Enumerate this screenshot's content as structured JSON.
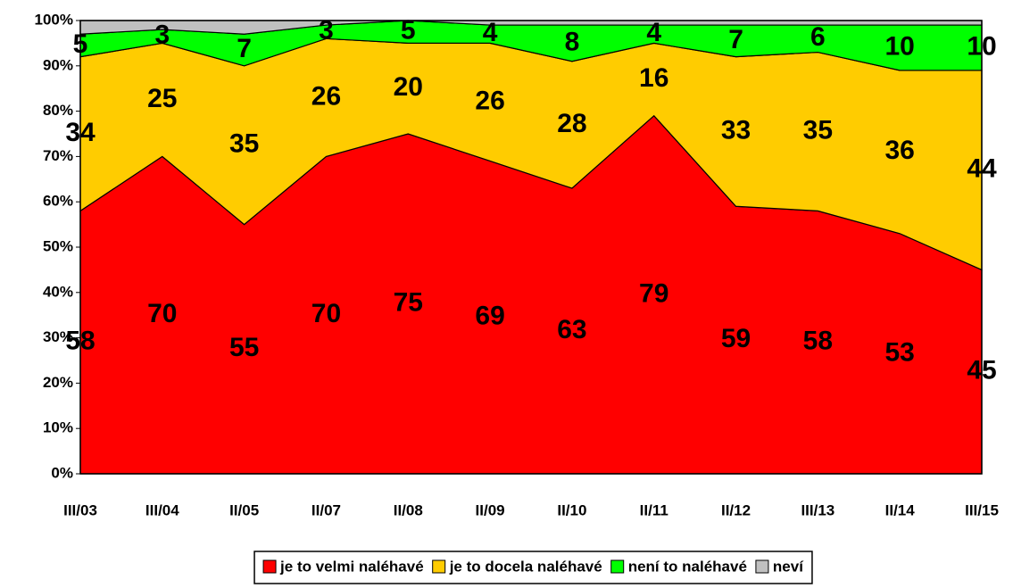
{
  "chart_data": {
    "type": "stacked_area",
    "categories": [
      "III/03",
      "III/04",
      "II/05",
      "II/07",
      "II/08",
      "II/09",
      "II/10",
      "II/11",
      "II/12",
      "III/13",
      "II/14",
      "III/15"
    ],
    "series": [
      {
        "name": "je to velmi naléhavé",
        "color": "#ff0000",
        "values": [
          58,
          70,
          55,
          70,
          75,
          69,
          63,
          79,
          59,
          58,
          53,
          45
        ],
        "show_labels": true
      },
      {
        "name": "je to docela naléhavé",
        "color": "#ffcc00",
        "values": [
          34,
          25,
          35,
          26,
          20,
          26,
          28,
          16,
          33,
          35,
          36,
          44
        ],
        "show_labels": true
      },
      {
        "name": "není to naléhavé",
        "color": "#00ff00",
        "values": [
          5,
          3,
          7,
          3,
          5,
          4,
          8,
          4,
          7,
          6,
          10,
          10
        ],
        "show_labels": true
      },
      {
        "name": "neví",
        "color": "#c0c0c0",
        "values": [
          3,
          2,
          3,
          1,
          0,
          1,
          1,
          1,
          1,
          1,
          1,
          1
        ],
        "show_labels": false
      }
    ],
    "ylim": [
      0,
      100
    ],
    "yticks": [
      {
        "value": 0,
        "label": "0%"
      },
      {
        "value": 10,
        "label": "10%"
      },
      {
        "value": 20,
        "label": "20%"
      },
      {
        "value": 30,
        "label": "30%"
      },
      {
        "value": 40,
        "label": "40%"
      },
      {
        "value": 50,
        "label": "50%"
      },
      {
        "value": 60,
        "label": "60%"
      },
      {
        "value": 70,
        "label": "70%"
      },
      {
        "value": 80,
        "label": "80%"
      },
      {
        "value": 90,
        "label": "90%"
      },
      {
        "value": 100,
        "label": "100%"
      }
    ],
    "legend": "bottom"
  }
}
